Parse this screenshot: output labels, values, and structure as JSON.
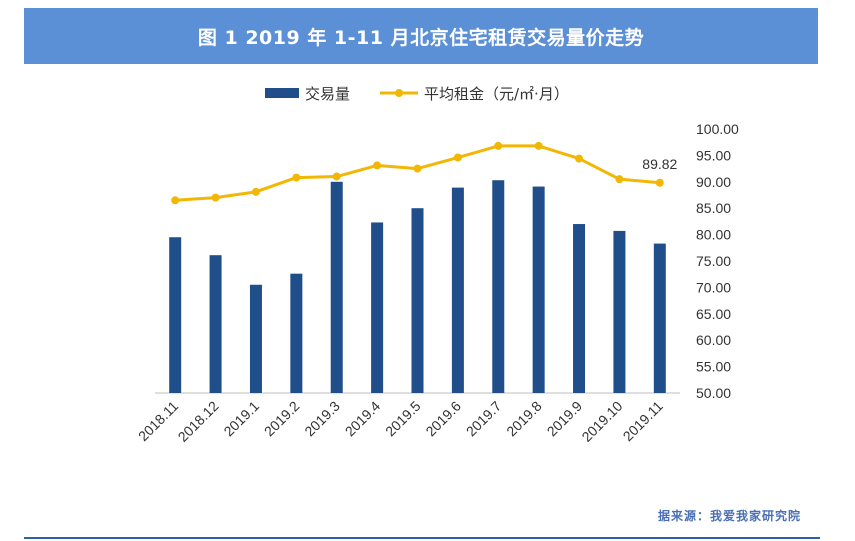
{
  "header": {
    "title": "图 1   2019 年 1-11 月北京住宅租赁交易量价走势"
  },
  "source_note": "据来源：我爱我家研究院",
  "colors": {
    "bar": "#1f4e8a",
    "line": "#f2b705",
    "title_bg": "#5b8fd6",
    "source": "#4a6fb5"
  },
  "chart_data": {
    "type": "bar+line",
    "categories": [
      "2018.11",
      "2018.12",
      "2019.1",
      "2019.2",
      "2019.3",
      "2019.4",
      "2019.5",
      "2019.6",
      "2019.7",
      "2019.8",
      "2019.9",
      "2019.10",
      "2019.11"
    ],
    "series": [
      {
        "name": "交易量",
        "type": "bar",
        "values": [
          79.5,
          76.1,
          70.5,
          72.6,
          90.0,
          82.3,
          85.0,
          88.9,
          90.3,
          89.1,
          82.0,
          80.7,
          78.3
        ]
      },
      {
        "name": "平均租金（元/㎡·月）",
        "type": "line",
        "values": [
          86.5,
          87.0,
          88.1,
          90.8,
          91.0,
          93.1,
          92.5,
          94.6,
          96.8,
          96.8,
          94.4,
          90.5,
          89.82
        ]
      }
    ],
    "yaxis": {
      "position": "right",
      "min": 50,
      "max": 100,
      "step": 5,
      "decimals": 2
    },
    "data_labels": [
      {
        "series": 1,
        "index": 12,
        "text": "89.82"
      }
    ],
    "legend": "top-center",
    "grid": false
  }
}
